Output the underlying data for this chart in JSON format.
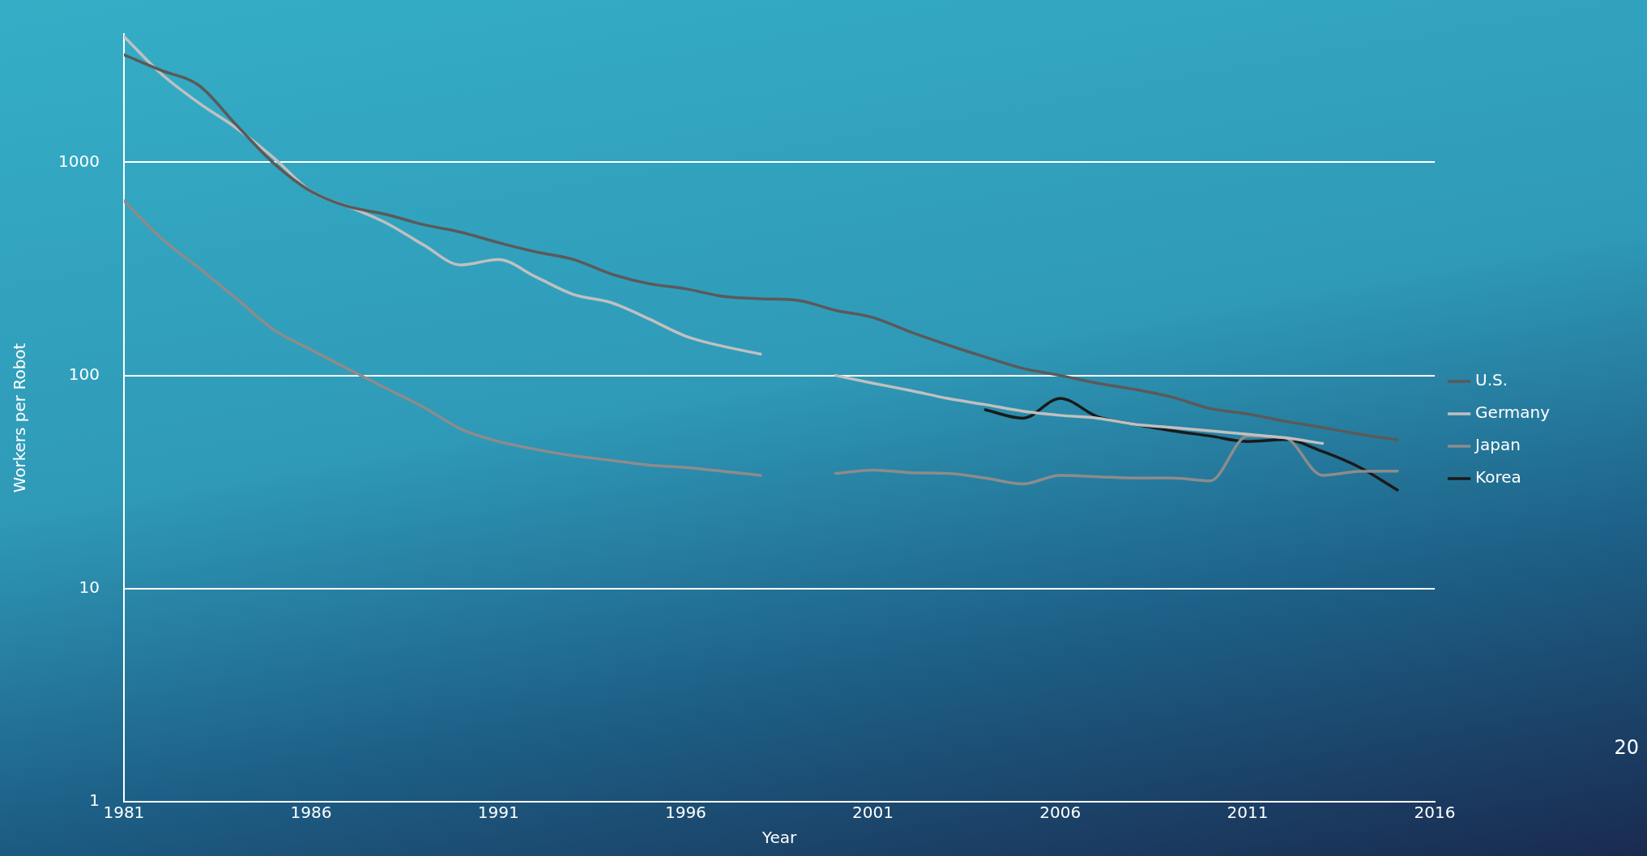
{
  "chart_data": {
    "type": "line",
    "xlabel": "Year",
    "ylabel": "Workers per Robot",
    "x": [
      1981,
      1982,
      1983,
      1984,
      1985,
      1986,
      1987,
      1988,
      1989,
      1990,
      1991,
      1992,
      1993,
      1994,
      1995,
      1996,
      1997,
      1998,
      1999,
      2000,
      2001,
      2002,
      2003,
      2004,
      2005,
      2006,
      2007,
      2008,
      2009,
      2010,
      2011,
      2012,
      2013,
      2014,
      2015
    ],
    "series": [
      {
        "name": "U.S.",
        "color": "#5a5a5a",
        "values": [
          3200,
          2700,
          2300,
          1500,
          990,
          730,
          620,
          570,
          510,
          470,
          420,
          380,
          350,
          300,
          270,
          255,
          235,
          229,
          225,
          202,
          187,
          160,
          139,
          122,
          108,
          100,
          92,
          86,
          79,
          70,
          66,
          61,
          57,
          53,
          50
        ]
      },
      {
        "name": "Germany",
        "color": "#c0c0c0",
        "values": [
          3900,
          2600,
          1900,
          1450,
          1050,
          730,
          620,
          520,
          410,
          330,
          350,
          290,
          240,
          220,
          185,
          153,
          137,
          126,
          null,
          100,
          92,
          85,
          78,
          73,
          68,
          65,
          63,
          59,
          57,
          55,
          53,
          51,
          48,
          null,
          null
        ]
      },
      {
        "name": "Japan",
        "color": "#8c8c8c",
        "values": [
          660,
          440,
          320,
          230,
          164,
          132,
          107,
          87,
          71,
          56,
          49,
          45,
          42,
          40,
          38,
          37,
          35.5,
          34,
          null,
          34.7,
          36,
          35,
          34.7,
          33,
          31,
          34,
          33.5,
          33,
          33,
          32,
          52,
          51,
          34,
          35.5,
          35.6
        ]
      },
      {
        "name": "Korea",
        "color": "#1a1a1a",
        "values": [
          null,
          null,
          null,
          null,
          null,
          null,
          null,
          null,
          null,
          null,
          null,
          null,
          null,
          null,
          null,
          null,
          null,
          null,
          null,
          null,
          null,
          null,
          null,
          69,
          63,
          78,
          64,
          59,
          55,
          52,
          49,
          50,
          44,
          37,
          29
        ]
      }
    ],
    "log": "y",
    "xlim": [
      1981,
      2016
    ],
    "xticks": [
      1981,
      1986,
      1991,
      1996,
      2001,
      2006,
      2011,
      2016
    ],
    "ylim": [
      1,
      4000
    ],
    "yticks": [
      1,
      10,
      100,
      1000
    ],
    "grid": "y",
    "legend": "right",
    "marker": "none",
    "line_style": "solid",
    "annotations": [
      "20"
    ]
  }
}
